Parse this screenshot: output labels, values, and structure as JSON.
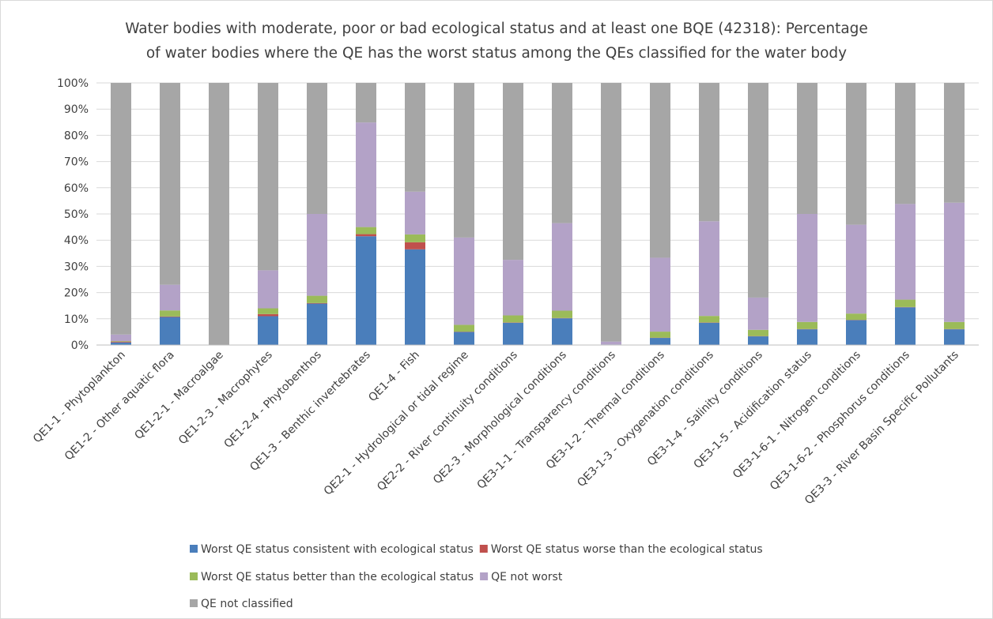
{
  "chart_data": {
    "type": "bar",
    "stacked": true,
    "title_lines": [
      "Water bodies with moderate, poor or bad ecological status and at least one BQE (42318): Percentage",
      "of water bodies where the QE has the worst status among the QEs classified for the water body"
    ],
    "xlabel": "",
    "ylabel": "",
    "ylim": [
      0,
      100
    ],
    "yticks": [
      "0%",
      "10%",
      "20%",
      "30%",
      "40%",
      "50%",
      "60%",
      "70%",
      "80%",
      "90%",
      "100%"
    ],
    "grid": true,
    "legend_position": "bottom",
    "categories": [
      "QE1-1 - Phytoplankton",
      "QE1-2 - Other aquatic flora",
      "QE1-2-1 - Macroalgae",
      "QE1-2-3 - Macrophytes",
      "QE1-2-4 - Phytobenthos",
      "QE1-3 - Benthic invertebrates",
      "QE1-4 - Fish",
      "QE2-1 - Hydrological or tidal regime",
      "QE2-2 - River continuity conditions",
      "QE2-3 - Morphological conditions",
      "QE3-1-1 - Transparency conditions",
      "QE3-1-2 - Thermal conditions",
      "QE3-1-3 - Oxygenation conditions",
      "QE3-1-4 - Salinity conditions",
      "QE3-1-5 - Acidification status",
      "QE3-1-6-1 - Nitrogen conditions",
      "QE3-1-6-2 - Phosphorus conditions",
      "QE3-3 - River Basin Specific Pollutants"
    ],
    "series": [
      {
        "name": "Worst QE status consistent with ecological status",
        "color": "#4a7ebb",
        "values": [
          1,
          10.7,
          0,
          11,
          15.8,
          41.5,
          36.5,
          5,
          8.5,
          10.2,
          0.2,
          2.7,
          8.5,
          3.3,
          6,
          9.5,
          14.4,
          6
        ]
      },
      {
        "name": "Worst QE status worse than the ecological status",
        "color": "#c0504d",
        "values": [
          0.3,
          0.2,
          0,
          0.8,
          0.2,
          0.8,
          2.7,
          0.1,
          0.1,
          0.1,
          0,
          0.1,
          0.1,
          0.1,
          0.1,
          0.1,
          0.1,
          0.1
        ]
      },
      {
        "name": "Worst QE status better than the ecological status",
        "color": "#9bbb59",
        "values": [
          0.2,
          2.3,
          0,
          2.2,
          2.8,
          2.7,
          3,
          2.6,
          2.7,
          2.8,
          0,
          2.3,
          2.5,
          2.4,
          2.7,
          2.4,
          2.8,
          2.7
        ]
      },
      {
        "name": "QE not worst",
        "color": "#b3a2c7",
        "values": [
          2.5,
          9.8,
          0,
          14.5,
          31.2,
          39.9,
          16.3,
          33.3,
          21.2,
          33.4,
          1.1,
          28.2,
          36.1,
          12.3,
          41.2,
          33.9,
          36.5,
          45.5
        ]
      },
      {
        "name": "QE not classified",
        "color": "#a6a6a6",
        "values": [
          96,
          77,
          100,
          71.5,
          50,
          15.1,
          41.5,
          59,
          67.5,
          53.5,
          98.7,
          66.7,
          52.8,
          81.9,
          50,
          54.1,
          46.2,
          45.7
        ]
      }
    ]
  }
}
